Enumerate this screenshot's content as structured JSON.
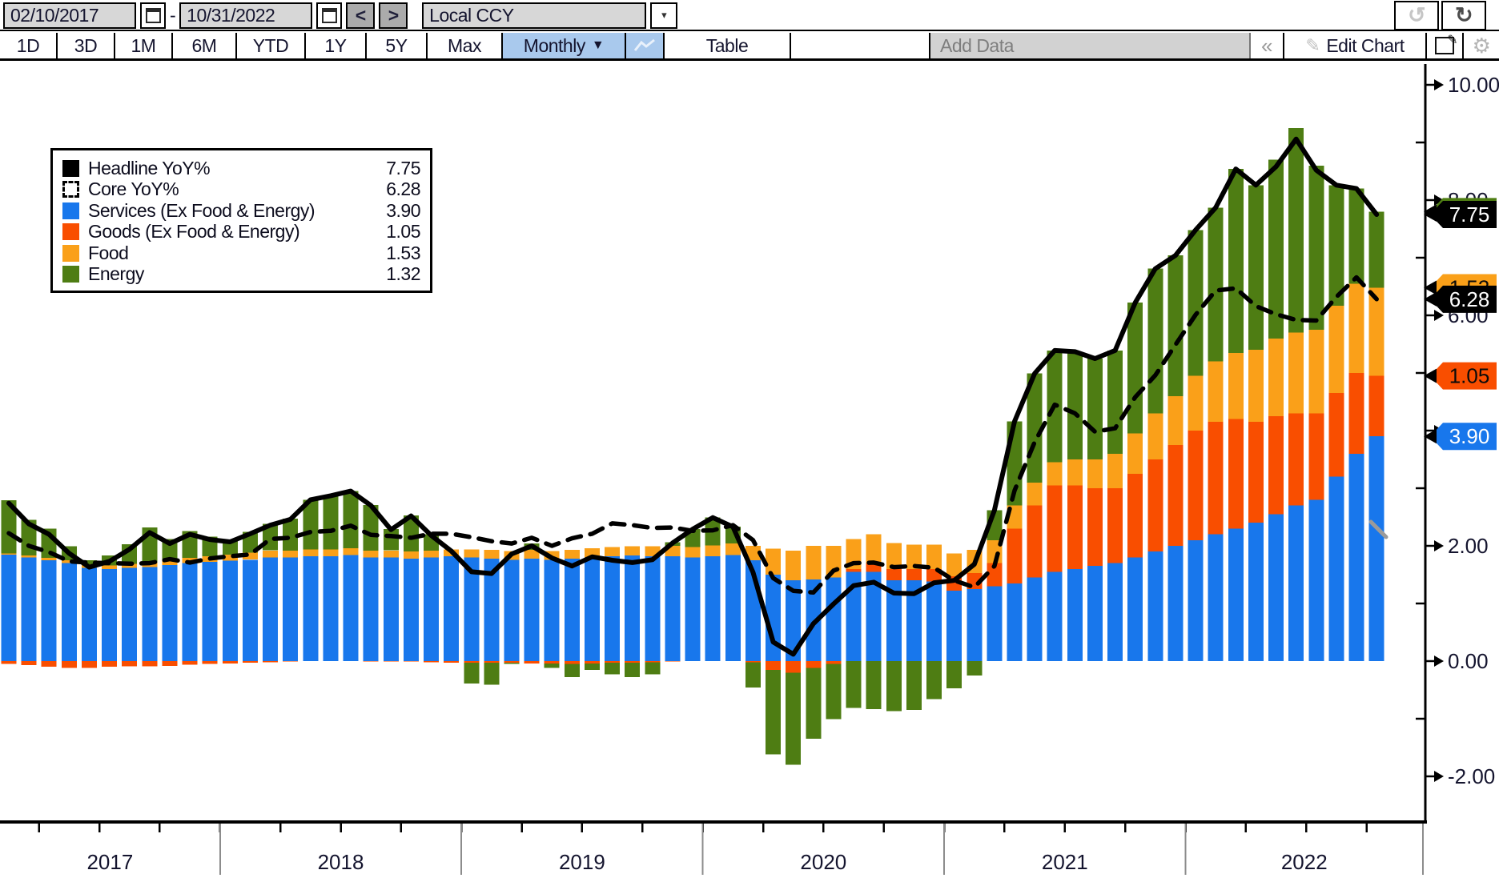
{
  "toolbar": {
    "start_date": "02/10/2017",
    "end_date": "10/31/2022",
    "date_separator": "-",
    "prev": "<",
    "next": ">",
    "currency_mode": "Local CCY",
    "ranges": [
      "1D",
      "3D",
      "1M",
      "6M",
      "YTD",
      "1Y",
      "5Y",
      "Max"
    ],
    "frequency": "Monthly",
    "frequency_arrow": "▼",
    "table": "Table",
    "add_data": "Add Data",
    "collapse": "«",
    "edit_chart": "Edit Chart",
    "undo": "↺",
    "redo": "↻"
  },
  "colors": {
    "services": "#1877ec",
    "goods": "#f94e00",
    "food": "#faa019",
    "energy": "#4e7d13",
    "headline": "#000000",
    "core": "#000000",
    "highlight_blue": "#a9c9ed",
    "field_gray": "#d7d7d7",
    "adddata_gray": "#d2d2d2",
    "axis_text": "#14142e",
    "separator_gray": "#8c8c8c"
  },
  "legend": {
    "items": [
      {
        "label": "Headline YoY%",
        "value": "7.75",
        "series": "headline"
      },
      {
        "label": "Core YoY%",
        "value": "6.28",
        "series": "core"
      },
      {
        "label": "Services (Ex Food & Energy)",
        "value": "3.90",
        "series": "services"
      },
      {
        "label": "Goods (Ex Food & Energy)",
        "value": "1.05",
        "series": "goods"
      },
      {
        "label": "Food",
        "value": "1.53",
        "series": "food"
      },
      {
        "label": "Energy",
        "value": "1.32",
        "series": "energy"
      }
    ]
  },
  "axis": {
    "y_ticks": [
      {
        "value": 10,
        "label": "10.00"
      },
      {
        "value": 8,
        "label": "8.00"
      },
      {
        "value": 6,
        "label": "6.00"
      },
      {
        "value": 4,
        "label": "4.00"
      },
      {
        "value": 2,
        "label": "2.00"
      },
      {
        "value": 0,
        "label": "0.00"
      },
      {
        "value": -2,
        "label": "-2.00"
      }
    ],
    "y_minor": [
      9,
      7,
      5,
      3,
      1,
      -1
    ],
    "years": [
      "2017",
      "2018",
      "2019",
      "2020",
      "2021",
      "2022"
    ]
  },
  "badges": [
    {
      "name": "energy",
      "text": "1.32",
      "at": 7.8,
      "bg": "#4e7d13",
      "fg": "#0a0a0a"
    },
    {
      "name": "food",
      "text": "1.53",
      "at": 6.48,
      "bg": "#faa019",
      "fg": "#0a0a0a"
    },
    {
      "name": "headline",
      "text": "7.75",
      "at": 7.75,
      "bg": "#000000",
      "fg": "#ffffff"
    },
    {
      "name": "core",
      "text": "6.28",
      "at": 6.28,
      "bg": "#000000",
      "fg": "#ffffff"
    },
    {
      "name": "goods",
      "text": "1.05",
      "at": 4.95,
      "bg": "#f94e00",
      "fg": "#0a0a0a"
    },
    {
      "name": "services",
      "text": "3.90",
      "at": 3.9,
      "bg": "#1877ec",
      "fg": "#ffffff"
    }
  ],
  "chart_data": {
    "type": "bar",
    "stacked": true,
    "ylim": [
      -2.8,
      10.4
    ],
    "grid": false,
    "legend_position": "top-left",
    "months": [
      "2017-02",
      "2017-03",
      "2017-04",
      "2017-05",
      "2017-06",
      "2017-07",
      "2017-08",
      "2017-09",
      "2017-10",
      "2017-11",
      "2017-12",
      "2018-01",
      "2018-02",
      "2018-03",
      "2018-04",
      "2018-05",
      "2018-06",
      "2018-07",
      "2018-08",
      "2018-09",
      "2018-10",
      "2018-11",
      "2018-12",
      "2019-01",
      "2019-02",
      "2019-03",
      "2019-04",
      "2019-05",
      "2019-06",
      "2019-07",
      "2019-08",
      "2019-09",
      "2019-10",
      "2019-11",
      "2019-12",
      "2020-01",
      "2020-02",
      "2020-03",
      "2020-04",
      "2020-05",
      "2020-06",
      "2020-07",
      "2020-08",
      "2020-09",
      "2020-10",
      "2020-11",
      "2020-12",
      "2021-01",
      "2021-02",
      "2021-03",
      "2021-04",
      "2021-05",
      "2021-06",
      "2021-07",
      "2021-08",
      "2021-09",
      "2021-10",
      "2021-11",
      "2021-12",
      "2022-01",
      "2022-02",
      "2022-03",
      "2022-04",
      "2022-05",
      "2022-06",
      "2022-07",
      "2022-08",
      "2022-09",
      "2022-10"
    ],
    "series": [
      {
        "name": "services",
        "label": "Services (Ex Food & Energy)",
        "color": "#1877ec",
        "values": [
          1.85,
          1.8,
          1.75,
          1.7,
          1.62,
          1.6,
          1.62,
          1.63,
          1.67,
          1.7,
          1.72,
          1.74,
          1.76,
          1.8,
          1.8,
          1.82,
          1.82,
          1.84,
          1.8,
          1.8,
          1.78,
          1.8,
          1.82,
          1.8,
          1.78,
          1.76,
          1.78,
          1.76,
          1.78,
          1.8,
          1.82,
          1.83,
          1.82,
          1.82,
          1.8,
          1.82,
          1.84,
          1.75,
          1.5,
          1.4,
          1.42,
          1.45,
          1.55,
          1.55,
          1.4,
          1.4,
          1.38,
          1.22,
          1.25,
          1.3,
          1.35,
          1.45,
          1.55,
          1.6,
          1.65,
          1.7,
          1.8,
          1.9,
          2.0,
          2.1,
          2.2,
          2.3,
          2.4,
          2.55,
          2.7,
          2.8,
          3.2,
          3.6,
          3.9
        ]
      },
      {
        "name": "goods",
        "label": "Goods (Ex Food & Energy)",
        "color": "#f94e00",
        "values": [
          -0.05,
          -0.07,
          -0.1,
          -0.12,
          -0.12,
          -0.1,
          -0.09,
          -0.09,
          -0.08,
          -0.06,
          -0.05,
          -0.04,
          -0.03,
          -0.02,
          -0.01,
          0.0,
          0.0,
          0.0,
          -0.01,
          -0.01,
          -0.01,
          -0.02,
          -0.03,
          -0.03,
          -0.03,
          -0.03,
          -0.04,
          -0.04,
          -0.05,
          -0.04,
          -0.03,
          -0.03,
          -0.02,
          -0.01,
          0.0,
          0.0,
          0.0,
          -0.02,
          -0.15,
          -0.2,
          -0.12,
          -0.05,
          0.05,
          0.15,
          0.2,
          0.2,
          0.22,
          0.25,
          0.28,
          0.4,
          0.95,
          1.25,
          1.5,
          1.45,
          1.35,
          1.3,
          1.45,
          1.6,
          1.75,
          1.9,
          1.95,
          1.9,
          1.75,
          1.7,
          1.6,
          1.5,
          1.45,
          1.4,
          1.05
        ]
      },
      {
        "name": "food",
        "label": "Food",
        "color": "#faa019",
        "values": [
          0.02,
          0.03,
          0.04,
          0.05,
          0.06,
          0.06,
          0.07,
          0.08,
          0.08,
          0.09,
          0.1,
          0.11,
          0.12,
          0.12,
          0.12,
          0.12,
          0.12,
          0.12,
          0.12,
          0.12,
          0.12,
          0.12,
          0.12,
          0.14,
          0.15,
          0.15,
          0.15,
          0.15,
          0.15,
          0.16,
          0.16,
          0.16,
          0.17,
          0.18,
          0.18,
          0.19,
          0.2,
          0.25,
          0.45,
          0.52,
          0.58,
          0.55,
          0.52,
          0.5,
          0.45,
          0.42,
          0.42,
          0.4,
          0.4,
          0.4,
          0.4,
          0.4,
          0.4,
          0.45,
          0.5,
          0.6,
          0.7,
          0.8,
          0.85,
          0.95,
          1.05,
          1.15,
          1.25,
          1.35,
          1.4,
          1.45,
          1.52,
          1.55,
          1.53
        ]
      },
      {
        "name": "energy",
        "label": "Energy",
        "color": "#4e7d13",
        "values": [
          0.92,
          0.62,
          0.51,
          0.24,
          0.07,
          0.17,
          0.34,
          0.61,
          0.37,
          0.47,
          0.34,
          0.26,
          0.36,
          0.46,
          0.55,
          0.86,
          0.93,
          0.99,
          0.79,
          0.37,
          0.63,
          0.28,
          0.0,
          -0.36,
          -0.38,
          -0.02,
          0.11,
          -0.08,
          -0.23,
          -0.11,
          -0.2,
          -0.25,
          -0.21,
          0.06,
          0.31,
          0.48,
          0.29,
          -0.44,
          -1.47,
          -1.6,
          -1.23,
          -0.96,
          -0.81,
          -0.83,
          -0.87,
          -0.85,
          -0.66,
          -0.47,
          -0.25,
          0.52,
          1.46,
          1.89,
          1.94,
          1.87,
          1.75,
          1.79,
          2.27,
          2.51,
          2.44,
          2.53,
          2.67,
          3.19,
          2.86,
          3.1,
          3.55,
          2.85,
          2.09,
          1.65,
          1.32
        ]
      }
    ],
    "lines": [
      {
        "name": "headline",
        "label": "Headline YoY%",
        "color": "#000000",
        "style": "solid",
        "values": [
          2.74,
          2.38,
          2.2,
          1.87,
          1.63,
          1.73,
          1.94,
          2.23,
          2.04,
          2.2,
          2.11,
          2.07,
          2.21,
          2.36,
          2.46,
          2.8,
          2.87,
          2.95,
          2.7,
          2.28,
          2.52,
          2.18,
          1.91,
          1.55,
          1.52,
          1.86,
          2.0,
          1.79,
          1.65,
          1.81,
          1.75,
          1.71,
          1.76,
          2.05,
          2.29,
          2.49,
          2.33,
          1.54,
          0.33,
          0.12,
          0.65,
          0.99,
          1.31,
          1.37,
          1.18,
          1.17,
          1.36,
          1.4,
          1.68,
          2.62,
          4.16,
          4.99,
          5.39,
          5.37,
          5.25,
          5.39,
          6.22,
          6.81,
          7.04,
          7.48,
          7.87,
          8.54,
          8.26,
          8.58,
          9.06,
          8.52,
          8.26,
          8.2,
          7.75
        ]
      },
      {
        "name": "core",
        "label": "Core YoY%",
        "color": "#000000",
        "style": "dashed",
        "values": [
          2.22,
          2.0,
          1.89,
          1.73,
          1.71,
          1.7,
          1.69,
          1.7,
          1.77,
          1.71,
          1.78,
          1.82,
          1.85,
          2.12,
          2.14,
          2.24,
          2.26,
          2.35,
          2.19,
          2.17,
          2.14,
          2.21,
          2.21,
          2.15,
          2.08,
          2.04,
          2.14,
          2.0,
          2.13,
          2.21,
          2.39,
          2.36,
          2.31,
          2.32,
          2.26,
          2.27,
          2.36,
          2.1,
          1.44,
          1.22,
          1.19,
          1.57,
          1.7,
          1.71,
          1.63,
          1.65,
          1.62,
          1.4,
          1.28,
          1.65,
          2.96,
          3.8,
          4.45,
          4.3,
          3.98,
          4.04,
          4.58,
          4.96,
          5.49,
          6.01,
          6.43,
          6.47,
          6.16,
          6.02,
          5.92,
          5.91,
          6.32,
          6.66,
          6.28
        ]
      }
    ]
  }
}
